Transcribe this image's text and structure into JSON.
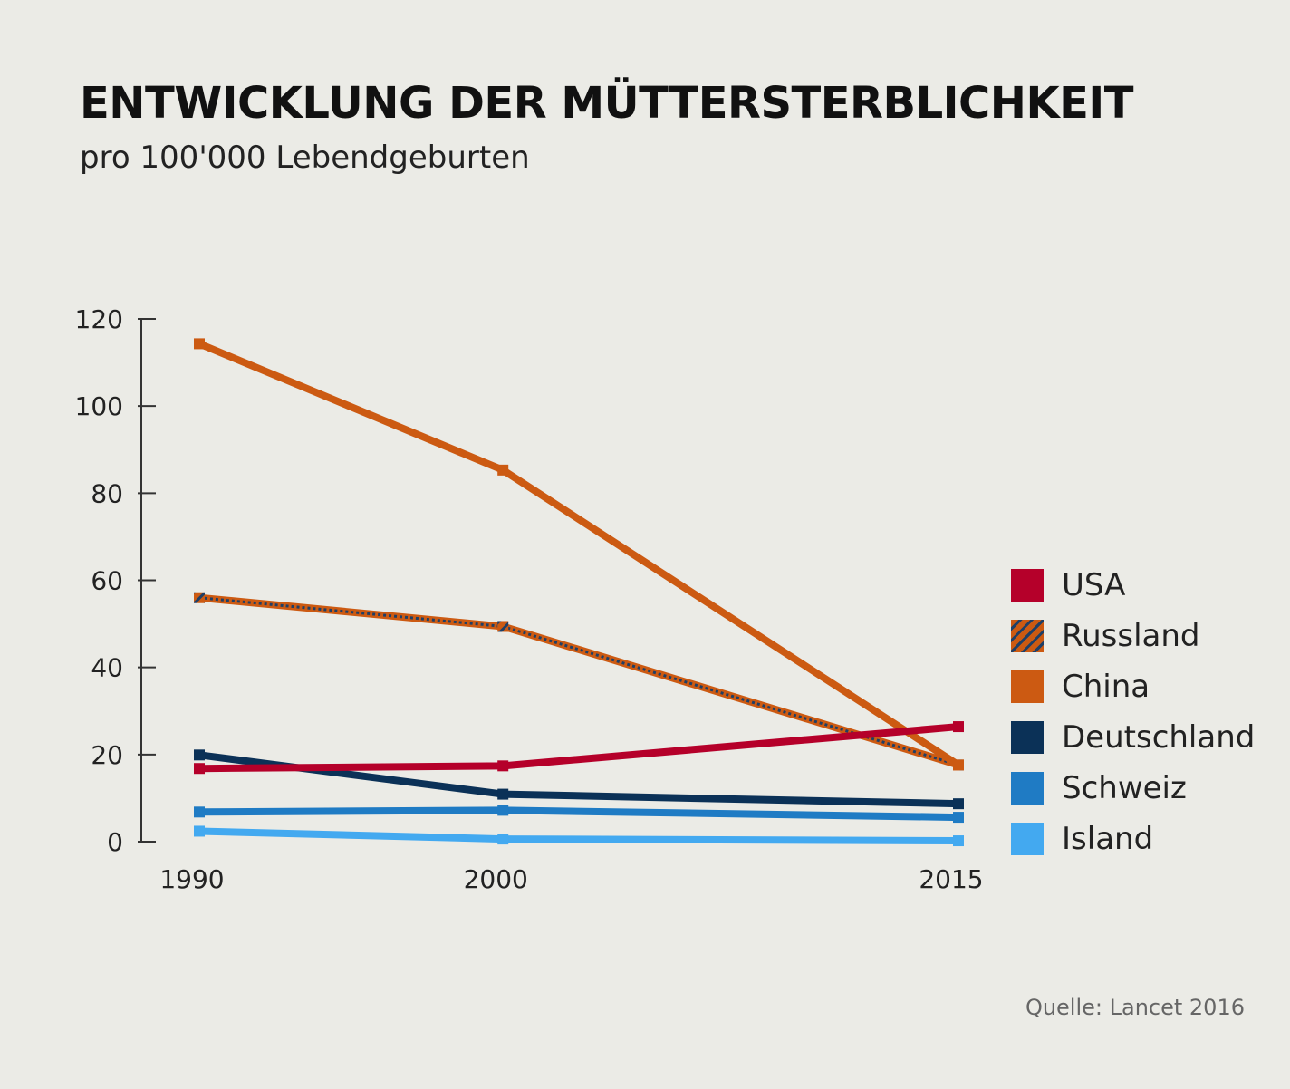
{
  "title": "ENTWICKLUNG DER MÜTTERSTERBLICHKEIT",
  "subtitle": "pro 100'000 Lebendgeburten",
  "source": "Quelle: Lancet 2016",
  "chart_data": {
    "type": "line",
    "title": "ENTWICKLUNG DER MÜTTERSTERBLICHKEIT",
    "subtitle": "pro 100'000 Lebendgeburten",
    "x": [
      1990,
      2000,
      2015
    ],
    "x_tick_labels": [
      "1990",
      "2000",
      "2015"
    ],
    "xlim": [
      1990,
      2015
    ],
    "ylim": [
      0,
      120
    ],
    "y_ticks": [
      0,
      20,
      40,
      60,
      80,
      100,
      120
    ],
    "grid": false,
    "legend_position": "right",
    "series": [
      {
        "name": "USA",
        "values": [
          16.8,
          17.4,
          26.4
        ],
        "color": "#b5002a",
        "pattern": "solid"
      },
      {
        "name": "Russland",
        "values": [
          56,
          49.4,
          17.6
        ],
        "color": "#cc5a12",
        "stripe_color": "#1f3f66",
        "pattern": "hatched"
      },
      {
        "name": "China",
        "values": [
          114.3,
          85.3,
          17.6
        ],
        "color": "#cc5a12",
        "pattern": "solid"
      },
      {
        "name": "Deutschland",
        "values": [
          19.9,
          10.9,
          8.7
        ],
        "color": "#0b3157",
        "pattern": "solid"
      },
      {
        "name": "Schweiz",
        "values": [
          6.8,
          7.2,
          5.6
        ],
        "color": "#1f7bc4",
        "pattern": "solid"
      },
      {
        "name": "Island",
        "values": [
          2.4,
          0.6,
          0.2
        ],
        "color": "#43a9f0",
        "pattern": "solid"
      }
    ]
  }
}
